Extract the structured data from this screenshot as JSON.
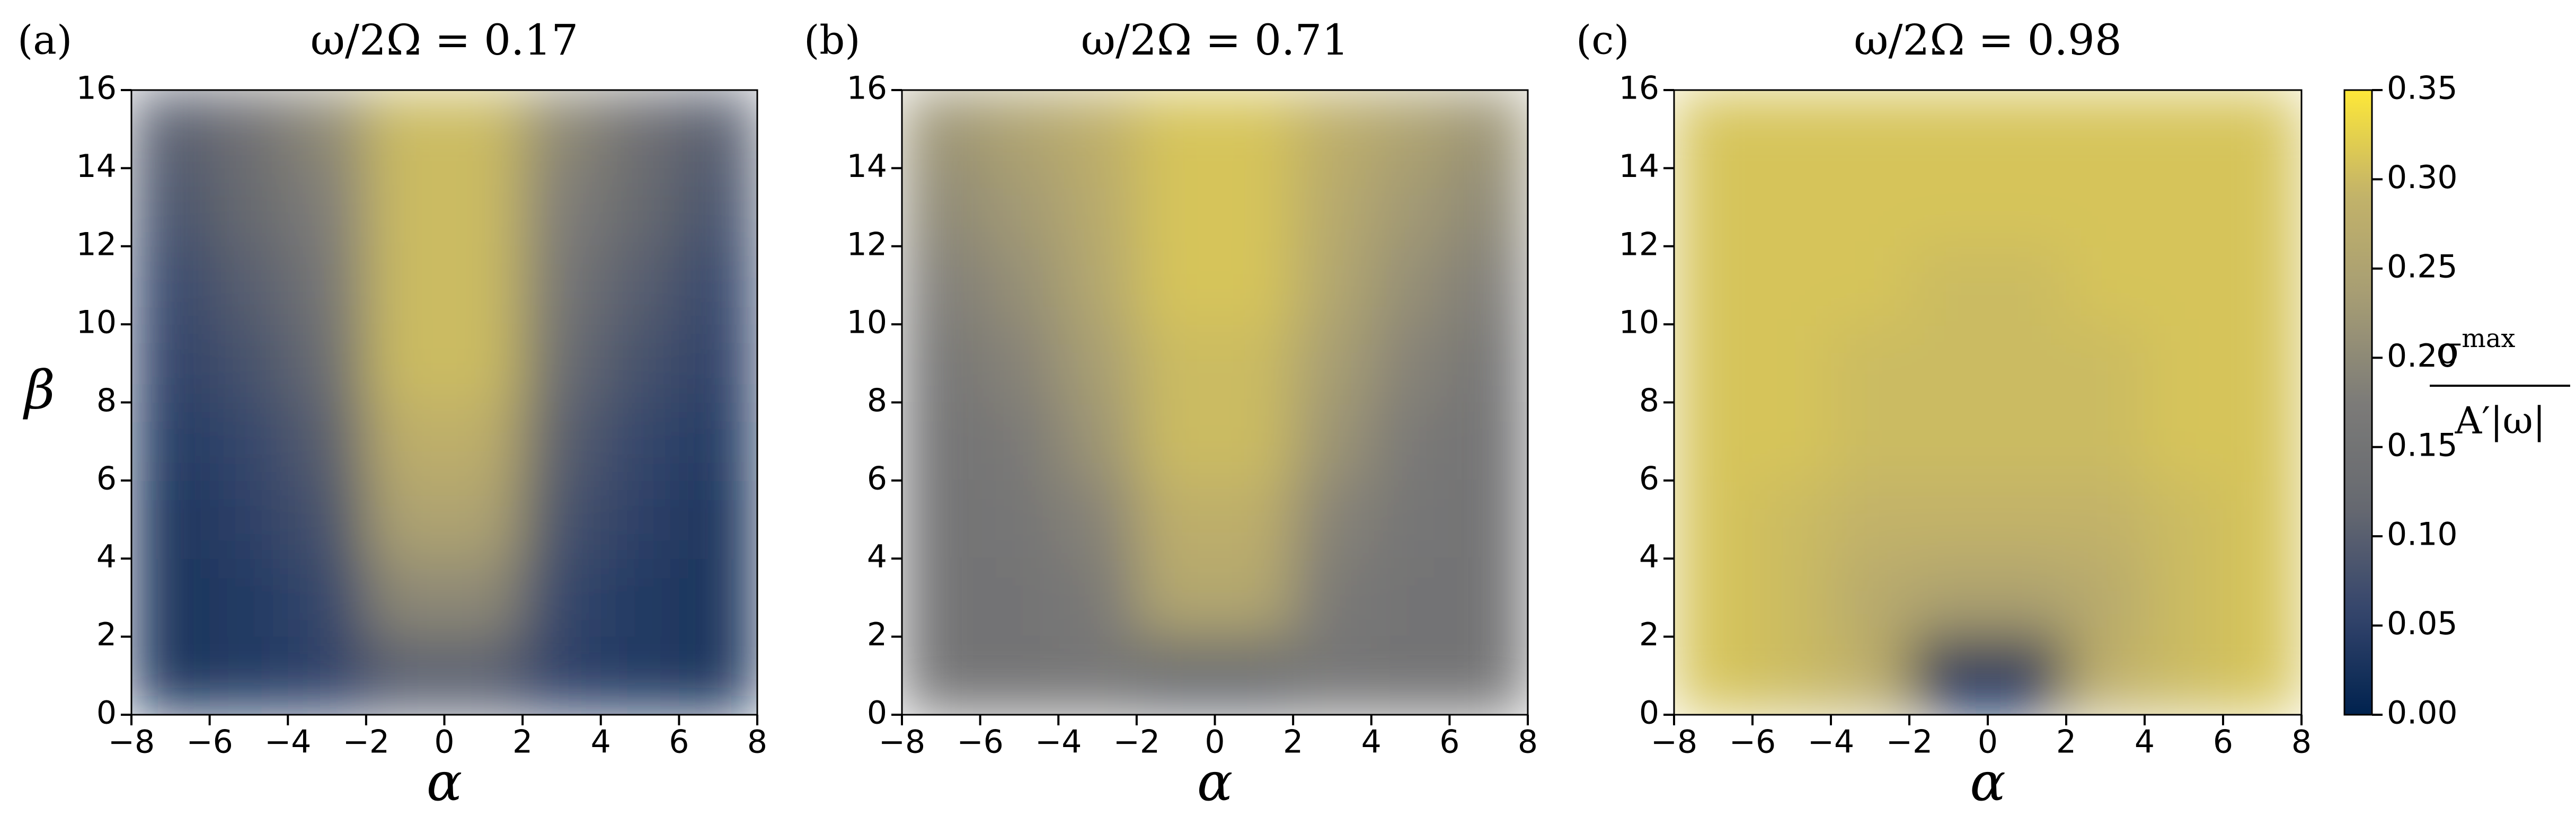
{
  "chart_data": [
    {
      "type": "heatmap",
      "panel_label": "(a)",
      "title": "ω/2Ω = 0.17",
      "xlabel": "α",
      "ylabel": "β",
      "x": [
        -7,
        -5,
        -3,
        -1,
        1,
        3,
        5,
        7
      ],
      "y": [
        1,
        3,
        5,
        7,
        9,
        11,
        13,
        15
      ],
      "values": [
        [
          0.03,
          0.04,
          0.05,
          0.1,
          0.1,
          0.05,
          0.04,
          0.03
        ],
        [
          0.03,
          0.04,
          0.06,
          0.2,
          0.2,
          0.06,
          0.04,
          0.03
        ],
        [
          0.03,
          0.05,
          0.08,
          0.25,
          0.25,
          0.08,
          0.05,
          0.03
        ],
        [
          0.04,
          0.06,
          0.1,
          0.28,
          0.28,
          0.1,
          0.06,
          0.04
        ],
        [
          0.05,
          0.08,
          0.13,
          0.3,
          0.3,
          0.13,
          0.08,
          0.05
        ],
        [
          0.06,
          0.1,
          0.16,
          0.3,
          0.3,
          0.16,
          0.1,
          0.06
        ],
        [
          0.08,
          0.12,
          0.18,
          0.3,
          0.3,
          0.18,
          0.12,
          0.08
        ],
        [
          0.1,
          0.14,
          0.2,
          0.3,
          0.3,
          0.2,
          0.14,
          0.1
        ]
      ],
      "xlim": [
        -8,
        8
      ],
      "ylim": [
        0,
        16
      ],
      "xticks": [
        {
          "value": -8,
          "label": "−8"
        },
        {
          "value": -6,
          "label": "−6"
        },
        {
          "value": -4,
          "label": "−4"
        },
        {
          "value": -2,
          "label": "−2"
        },
        0,
        2,
        4,
        6,
        8
      ],
      "yticks": [
        0,
        2,
        4,
        6,
        8,
        10,
        12,
        14,
        16
      ]
    },
    {
      "type": "heatmap",
      "panel_label": "(b)",
      "title": "ω/2Ω = 0.71",
      "xlabel": "α",
      "x": [
        -7,
        -5,
        -3,
        -1,
        1,
        3,
        5,
        7
      ],
      "y": [
        1,
        3,
        5,
        7,
        9,
        11,
        13,
        15
      ],
      "values": [
        [
          0.15,
          0.15,
          0.16,
          0.12,
          0.12,
          0.16,
          0.15,
          0.15
        ],
        [
          0.15,
          0.15,
          0.17,
          0.26,
          0.26,
          0.17,
          0.15,
          0.15
        ],
        [
          0.15,
          0.16,
          0.19,
          0.28,
          0.28,
          0.19,
          0.16,
          0.15
        ],
        [
          0.15,
          0.17,
          0.22,
          0.3,
          0.3,
          0.22,
          0.17,
          0.15
        ],
        [
          0.16,
          0.19,
          0.24,
          0.3,
          0.3,
          0.24,
          0.19,
          0.16
        ],
        [
          0.18,
          0.21,
          0.26,
          0.31,
          0.31,
          0.26,
          0.21,
          0.18
        ],
        [
          0.2,
          0.23,
          0.27,
          0.31,
          0.31,
          0.27,
          0.23,
          0.2
        ],
        [
          0.22,
          0.25,
          0.28,
          0.31,
          0.31,
          0.28,
          0.25,
          0.22
        ]
      ],
      "xlim": [
        -8,
        8
      ],
      "ylim": [
        0,
        16
      ],
      "xticks": [
        {
          "value": -8,
          "label": "−8"
        },
        {
          "value": -6,
          "label": "−6"
        },
        {
          "value": -4,
          "label": "−4"
        },
        {
          "value": -2,
          "label": "−2"
        },
        0,
        2,
        4,
        6,
        8
      ],
      "yticks": [
        0,
        2,
        4,
        6,
        8,
        10,
        12,
        14,
        16
      ]
    },
    {
      "type": "heatmap",
      "panel_label": "(c)",
      "title": "ω/2Ω = 0.98",
      "xlabel": "α",
      "x": [
        -7,
        -5,
        -3,
        -1,
        1,
        3,
        5,
        7
      ],
      "y": [
        1,
        3,
        5,
        7,
        9,
        11,
        13,
        15
      ],
      "values": [
        [
          0.31,
          0.3,
          0.28,
          0.02,
          0.02,
          0.28,
          0.3,
          0.31
        ],
        [
          0.31,
          0.3,
          0.27,
          0.25,
          0.25,
          0.27,
          0.3,
          0.31
        ],
        [
          0.31,
          0.3,
          0.29,
          0.29,
          0.29,
          0.29,
          0.3,
          0.31
        ],
        [
          0.31,
          0.31,
          0.3,
          0.3,
          0.3,
          0.3,
          0.31,
          0.31
        ],
        [
          0.31,
          0.31,
          0.3,
          0.3,
          0.3,
          0.3,
          0.31,
          0.31
        ],
        [
          0.31,
          0.31,
          0.31,
          0.3,
          0.3,
          0.31,
          0.31,
          0.31
        ],
        [
          0.31,
          0.31,
          0.31,
          0.31,
          0.31,
          0.31,
          0.31,
          0.31
        ],
        [
          0.31,
          0.31,
          0.31,
          0.31,
          0.31,
          0.31,
          0.31,
          0.31
        ]
      ],
      "xlim": [
        -8,
        8
      ],
      "ylim": [
        0,
        16
      ],
      "xticks": [
        {
          "value": -8,
          "label": "−8"
        },
        {
          "value": -6,
          "label": "−6"
        },
        {
          "value": -4,
          "label": "−4"
        },
        {
          "value": -2,
          "label": "−2"
        },
        0,
        2,
        4,
        6,
        8
      ],
      "yticks": [
        0,
        2,
        4,
        6,
        8,
        10,
        12,
        14,
        16
      ]
    }
  ],
  "colorbar": {
    "zlim": [
      0,
      0.35
    ],
    "colormap": [
      "#00224e",
      "#35456c",
      "#666970",
      "#7c7b78",
      "#a59c74",
      "#c3b369",
      "#fee838"
    ],
    "ticks": [
      {
        "value": 0,
        "label": "0.00"
      },
      {
        "value": 0.05,
        "label": "0.05"
      },
      {
        "value": 0.1,
        "label": "0.10"
      },
      0.15,
      {
        "value": 0.2,
        "label": "0.20"
      },
      0.25,
      {
        "value": 0.3,
        "label": "0.30"
      },
      0.35
    ],
    "label_numerator": "σ",
    "label_superscript": "max",
    "label_denominator": "A′|ω|"
  }
}
